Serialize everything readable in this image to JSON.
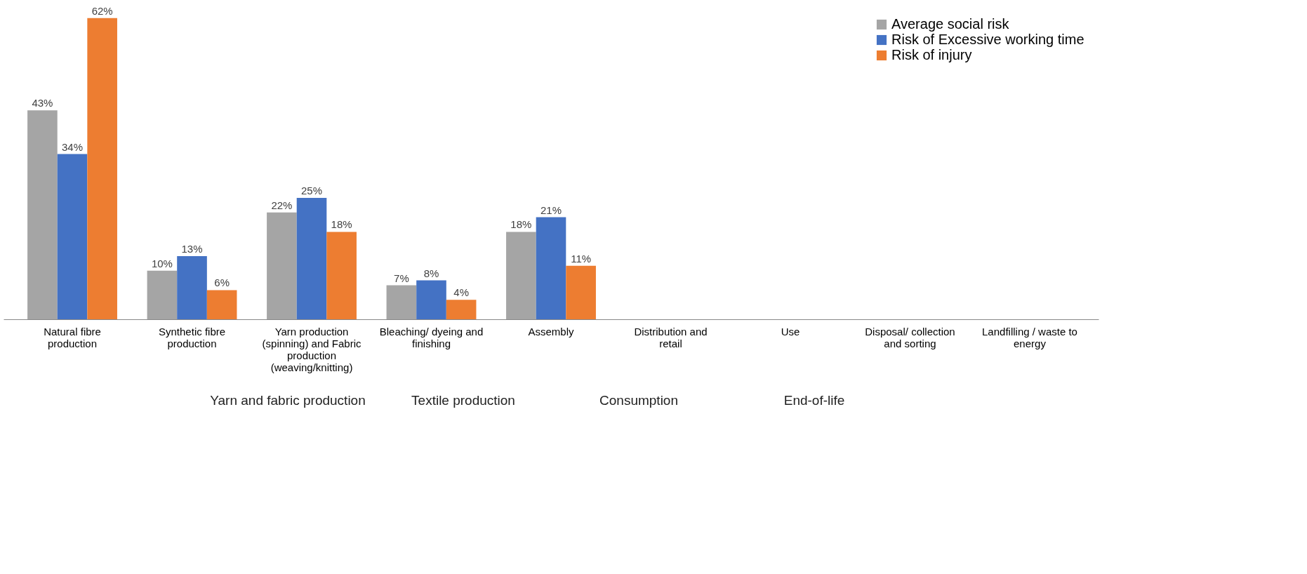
{
  "chart_data": {
    "type": "bar",
    "categories": [
      "Natural fibre production",
      "Synthetic fibre production",
      "Yarn production (spinning) and  Fabric production (weaving/knitting)",
      "Bleaching/ dyeing and finishing",
      "Assembly",
      "Distribution and retail",
      "Use",
      "Disposal/ collection and sorting",
      "Landfilling / waste to energy"
    ],
    "series": [
      {
        "name": "Average social risk",
        "color": "#a5a5a5",
        "values": [
          43,
          10,
          22,
          7,
          18,
          null,
          null,
          null,
          null
        ],
        "value_labels": [
          "43%",
          "10%",
          "22%",
          "7%",
          "18%",
          null,
          null,
          null,
          null
        ]
      },
      {
        "name": "Risk of Excessive working time",
        "color": "#4472c4",
        "values": [
          34,
          13,
          25,
          8,
          21,
          null,
          null,
          null,
          null
        ],
        "value_labels": [
          "34%",
          "13%",
          "25%",
          "8%",
          "21%",
          null,
          null,
          null,
          null
        ]
      },
      {
        "name": "Risk of injury",
        "color": "#ed7d31",
        "values": [
          62,
          6,
          18,
          4,
          11,
          null,
          null,
          null,
          null
        ],
        "value_labels": [
          "62%",
          "6%",
          "18%",
          "4%",
          "11%",
          null,
          null,
          null,
          null
        ]
      }
    ],
    "annotations": [
      "Yarn and fabric production",
      "Textile production",
      "Consumption",
      "End-of-life"
    ],
    "legend": "top right",
    "grid": false
  }
}
